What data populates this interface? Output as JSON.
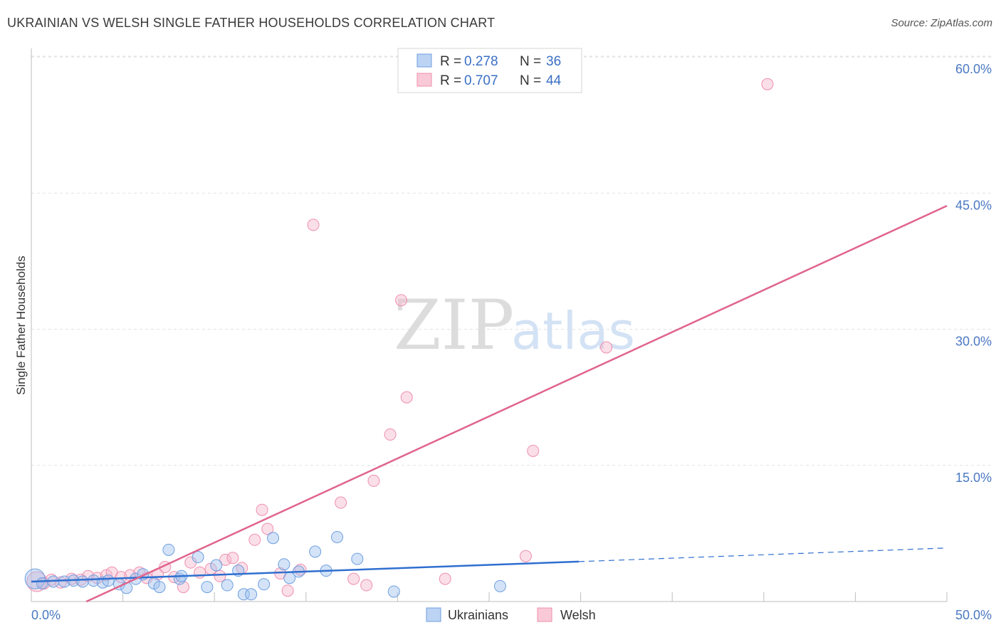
{
  "header": {
    "title": "UKRAINIAN VS WELSH SINGLE FATHER HOUSEHOLDS CORRELATION CHART",
    "source": "Source: ZipAtlas.com"
  },
  "watermark": {
    "zip": "ZIP",
    "atlas": "atlas"
  },
  "legend": {
    "r_label": "R =",
    "n_label": "N =",
    "rows": [
      {
        "r": "0.278",
        "n": "36"
      },
      {
        "r": "0.707",
        "n": "44"
      }
    ]
  },
  "bottom_legend": {
    "items": [
      "Ukrainians",
      "Welsh"
    ]
  },
  "chart_data": {
    "type": "scatter",
    "title": "UKRAINIAN VS WELSH SINGLE FATHER HOUSEHOLDS CORRELATION CHART",
    "xlabel": "",
    "ylabel": "Single Father Households",
    "xlim": [
      0,
      50
    ],
    "ylim": [
      0,
      63
    ],
    "x_tick_labels": [
      "0.0%",
      "50.0%"
    ],
    "y_ticks": [
      15,
      30,
      45,
      60
    ],
    "y_tick_labels": [
      "15.0%",
      "30.0%",
      "45.0%",
      "60.0%"
    ],
    "grid": true,
    "colors": {
      "ukrainians": "#6e9fe0",
      "welsh": "#ee8fae",
      "ukr_line": "#2f6fcf",
      "welsh_line": "#e0648c",
      "axis_label": "#4a78c2"
    },
    "series": [
      {
        "name": "Ukrainians",
        "r": 0.278,
        "n": 36,
        "points": [
          [
            0.2,
            2.5
          ],
          [
            0.6,
            2.0
          ],
          [
            1.2,
            2.2
          ],
          [
            1.8,
            2.2
          ],
          [
            2.3,
            2.3
          ],
          [
            2.8,
            2.2
          ],
          [
            3.4,
            2.3
          ],
          [
            3.9,
            2.1
          ],
          [
            4.2,
            2.3
          ],
          [
            4.8,
            1.9
          ],
          [
            5.2,
            1.5
          ],
          [
            5.7,
            2.5
          ],
          [
            6.1,
            3.0
          ],
          [
            6.7,
            2.0
          ],
          [
            7.0,
            1.6
          ],
          [
            7.5,
            5.7
          ],
          [
            8.1,
            2.5
          ],
          [
            8.2,
            2.8
          ],
          [
            9.1,
            4.9
          ],
          [
            9.6,
            1.6
          ],
          [
            10.1,
            4.0
          ],
          [
            10.7,
            1.8
          ],
          [
            11.3,
            3.4
          ],
          [
            11.6,
            0.8
          ],
          [
            12.0,
            0.8
          ],
          [
            12.7,
            1.9
          ],
          [
            13.2,
            7.0
          ],
          [
            13.8,
            4.1
          ],
          [
            14.1,
            2.6
          ],
          [
            14.6,
            3.3
          ],
          [
            15.5,
            5.5
          ],
          [
            16.1,
            3.4
          ],
          [
            16.7,
            7.1
          ],
          [
            17.8,
            4.7
          ],
          [
            19.8,
            1.1
          ],
          [
            25.6,
            1.7
          ]
        ],
        "trend": {
          "x0": 0,
          "y0": 2.2,
          "x1": 29.9,
          "y1": 4.4,
          "dash_to_x": 50,
          "dash_to_y": 5.9
        }
      },
      {
        "name": "Welsh",
        "r": 0.707,
        "n": 44,
        "points": [
          [
            0.3,
            2.2
          ],
          [
            0.7,
            2.0
          ],
          [
            1.1,
            2.4
          ],
          [
            1.6,
            2.1
          ],
          [
            2.2,
            2.5
          ],
          [
            2.7,
            2.4
          ],
          [
            3.1,
            2.8
          ],
          [
            3.6,
            2.6
          ],
          [
            4.1,
            2.9
          ],
          [
            4.4,
            3.2
          ],
          [
            4.9,
            2.7
          ],
          [
            5.4,
            2.9
          ],
          [
            5.9,
            3.2
          ],
          [
            6.3,
            2.6
          ],
          [
            6.9,
            3.0
          ],
          [
            7.3,
            3.8
          ],
          [
            7.8,
            2.7
          ],
          [
            8.3,
            1.6
          ],
          [
            8.7,
            4.3
          ],
          [
            9.2,
            3.2
          ],
          [
            9.8,
            3.6
          ],
          [
            10.3,
            2.8
          ],
          [
            10.6,
            4.6
          ],
          [
            11.0,
            4.8
          ],
          [
            11.5,
            3.7
          ],
          [
            12.2,
            6.8
          ],
          [
            12.6,
            10.1
          ],
          [
            12.9,
            8.0
          ],
          [
            13.6,
            3.1
          ],
          [
            14.0,
            1.2
          ],
          [
            14.7,
            3.5
          ],
          [
            15.4,
            41.5
          ],
          [
            16.9,
            10.9
          ],
          [
            17.6,
            2.5
          ],
          [
            18.3,
            1.8
          ],
          [
            18.7,
            13.3
          ],
          [
            19.6,
            18.4
          ],
          [
            20.2,
            33.2
          ],
          [
            20.5,
            22.5
          ],
          [
            22.6,
            2.5
          ],
          [
            27.0,
            5.0
          ],
          [
            27.4,
            16.6
          ],
          [
            31.4,
            28.0
          ],
          [
            40.2,
            57.0
          ]
        ],
        "trend": {
          "x0": 3.0,
          "y0": 0,
          "x1": 50,
          "y1": 43.6
        }
      }
    ]
  }
}
